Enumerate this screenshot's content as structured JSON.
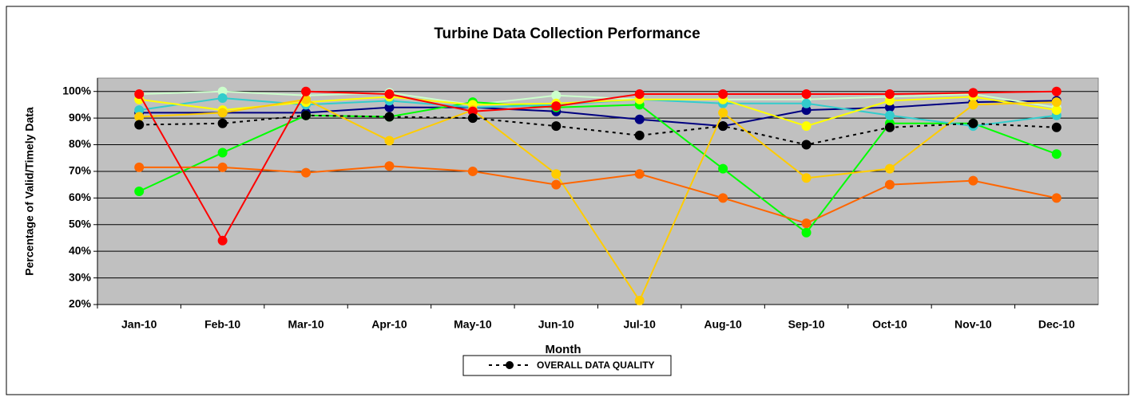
{
  "chart_data": {
    "type": "line",
    "title": "Turbine Data Collection Performance",
    "x_label": "Month",
    "y_label": "Percentage of Valid/Timely Data",
    "categories": [
      "Jan-10",
      "Feb-10",
      "Mar-10",
      "Apr-10",
      "May-10",
      "Jun-10",
      "Jul-10",
      "Aug-10",
      "Sep-10",
      "Oct-10",
      "Nov-10",
      "Dec-10"
    ],
    "ylim": [
      20,
      105
    ],
    "yticks": [
      {
        "value": 20,
        "label": "20%"
      },
      {
        "value": 30,
        "label": "30%"
      },
      {
        "value": 40,
        "label": "40%"
      },
      {
        "value": 50,
        "label": "50%"
      },
      {
        "value": 60,
        "label": "60%"
      },
      {
        "value": 70,
        "label": "70%"
      },
      {
        "value": 80,
        "label": "80%"
      },
      {
        "value": 90,
        "label": "90%"
      },
      {
        "value": 100,
        "label": "100%"
      }
    ],
    "grid": true,
    "plot_background": "#c0c0c0",
    "legend": "bottom",
    "series": [
      {
        "color": "#000080",
        "values": [
          92,
          92,
          92,
          94,
          94,
          92.5,
          89.5,
          87,
          93,
          94,
          96,
          96.5
        ]
      },
      {
        "color": "#ccffcc",
        "values": [
          99,
          100,
          98.5,
          99.5,
          95,
          98.5,
          97,
          97,
          97,
          98,
          99,
          94
        ]
      },
      {
        "color": "#00ff00",
        "values": [
          62.5,
          77,
          91,
          90.5,
          96,
          94,
          95,
          71,
          47,
          88,
          88,
          76.5
        ]
      },
      {
        "color": "#33cccc",
        "values": [
          93,
          97.5,
          95,
          96.5,
          94,
          95,
          97,
          95.5,
          95.5,
          91,
          87,
          91
        ]
      },
      {
        "color": "#ffff00",
        "values": [
          97,
          93,
          96,
          98,
          95,
          95.5,
          97,
          97,
          87,
          96.5,
          98,
          93
        ]
      },
      {
        "color": "#ffcc00",
        "values": [
          90.5,
          92,
          97,
          81.5,
          93,
          69,
          21.5,
          92,
          67.5,
          71,
          95,
          96
        ]
      },
      {
        "color": "#ff6600",
        "values": [
          71.5,
          71.5,
          69.5,
          72,
          70,
          65,
          69,
          60,
          50.5,
          65,
          66.5,
          60
        ]
      },
      {
        "color": "#ff0000",
        "values": [
          99,
          44,
          100,
          99,
          92.5,
          94.5,
          99,
          99,
          99,
          99,
          99.5,
          100
        ]
      },
      {
        "name": "OVERALL DATA QUALITY",
        "color": "#000000",
        "line_style": "dotted",
        "values": [
          87.5,
          88,
          91,
          90.5,
          90,
          87,
          83.5,
          87,
          80,
          86.5,
          88,
          86.5
        ]
      }
    ]
  }
}
